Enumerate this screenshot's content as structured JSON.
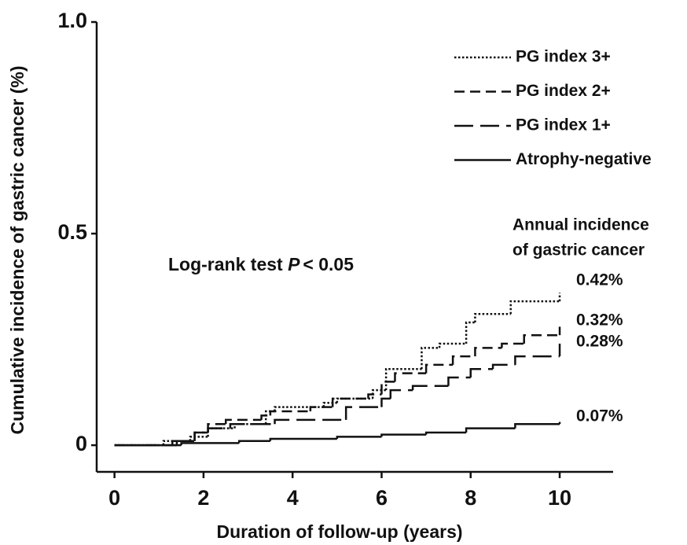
{
  "chart_data": {
    "type": "step",
    "xlabel": "Duration of follow-up (years)",
    "ylabel": "Cumulative incidence of gastric cancer (%)",
    "xlim": [
      -0.4,
      11.2
    ],
    "ylim": [
      -0.063,
      1.0
    ],
    "xticks": [
      0,
      2,
      4,
      6,
      8,
      10
    ],
    "yticks": [
      0,
      0.5,
      {
        "value": 1,
        "label": "1.0"
      }
    ],
    "legend": "upper right",
    "test_text": {
      "prefix": "Log-rank test",
      "italic": "P",
      "suffix": "< 0.05"
    },
    "incidence_header": [
      "Annual incidence",
      "of gastric cancer"
    ],
    "series": [
      {
        "name": "PG index 3+",
        "color": "#111111",
        "linestyle": "dotted",
        "annual_incidence": "0.42%",
        "x": [
          0,
          1.1,
          1.7,
          2.1,
          2.7,
          3.4,
          3.6,
          4.7,
          5,
          5.8,
          6.1,
          6.9,
          7.3,
          7.9,
          8.1,
          8.9,
          10
        ],
        "values": [
          0,
          0.01,
          0.02,
          0.04,
          0.05,
          0.08,
          0.09,
          0.1,
          0.11,
          0.13,
          0.18,
          0.23,
          0.24,
          0.29,
          0.31,
          0.34,
          0.36
        ]
      },
      {
        "name": "PG index 2+",
        "color": "#111111",
        "linestyle": "dashed",
        "annual_incidence": "0.32%",
        "x": [
          0,
          1.3,
          1.8,
          2.1,
          2.5,
          3.3,
          3.5,
          4.4,
          4.9,
          5.7,
          6,
          6.3,
          7,
          7.6,
          8.1,
          8.7,
          9.2,
          10
        ],
        "values": [
          0,
          0.01,
          0.03,
          0.05,
          0.06,
          0.07,
          0.08,
          0.09,
          0.11,
          0.12,
          0.15,
          0.17,
          0.19,
          0.21,
          0.23,
          0.24,
          0.26,
          0.28
        ]
      },
      {
        "name": "PG index 1+",
        "color": "#111111",
        "linestyle": "longdash",
        "annual_incidence": "0.28%",
        "x": [
          0,
          1.4,
          1.8,
          2.1,
          2.6,
          3.6,
          5.2,
          6,
          6.2,
          6.7,
          7.5,
          8,
          8.5,
          9,
          10
        ],
        "values": [
          0,
          0.01,
          0.03,
          0.04,
          0.05,
          0.06,
          0.09,
          0.11,
          0.13,
          0.14,
          0.16,
          0.18,
          0.19,
          0.21,
          0.24
        ]
      },
      {
        "name": "Atrophy-negative",
        "color": "#111111",
        "linestyle": "solid",
        "annual_incidence": "0.07%",
        "x": [
          0,
          1.5,
          2.8,
          3.5,
          5,
          6,
          7,
          7.9,
          9,
          10
        ],
        "values": [
          0,
          0.005,
          0.01,
          0.015,
          0.02,
          0.025,
          0.03,
          0.04,
          0.05,
          0.055
        ]
      }
    ]
  }
}
